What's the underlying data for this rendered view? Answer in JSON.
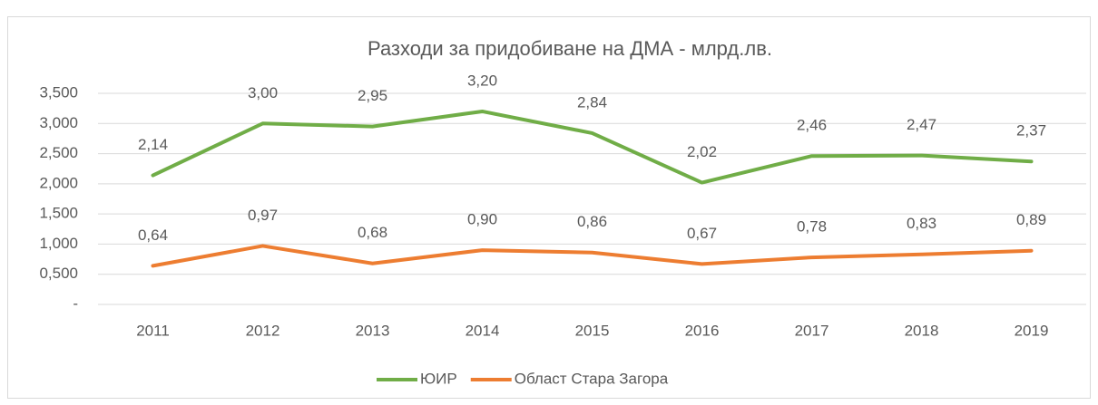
{
  "chart_data": {
    "type": "line",
    "title": "Разходи за придобиване на ДМА - млрд.лв.",
    "categories": [
      "2011",
      "2012",
      "2013",
      "2014",
      "2015",
      "2016",
      "2017",
      "2018",
      "2019"
    ],
    "series": [
      {
        "name": "ЮИР",
        "color": "#70ad47",
        "values": [
          2.14,
          3.0,
          2.95,
          3.2,
          2.84,
          2.02,
          2.46,
          2.47,
          2.37
        ],
        "value_labels": [
          "2,14",
          "3,00",
          "2,95",
          "3,20",
          "2,84",
          "2,02",
          "2,46",
          "2,47",
          "2,37"
        ]
      },
      {
        "name": "Област Стара Загора",
        "color": "#ed7d31",
        "values": [
          0.64,
          0.97,
          0.68,
          0.9,
          0.86,
          0.67,
          0.78,
          0.83,
          0.89
        ],
        "value_labels": [
          "0,64",
          "0,97",
          "0,68",
          "0,90",
          "0,86",
          "0,67",
          "0,78",
          "0,83",
          "0,89"
        ]
      }
    ],
    "ylim": [
      0,
      3.5
    ],
    "yticks": [
      {
        "value": 0,
        "label": "-"
      },
      {
        "value": 0.5,
        "label": "0,500"
      },
      {
        "value": 1,
        "label": "1,000"
      },
      {
        "value": 1.5,
        "label": "1,500"
      },
      {
        "value": 2,
        "label": "2,000"
      },
      {
        "value": 2.5,
        "label": "2,500"
      },
      {
        "value": 3,
        "label": "3,000"
      },
      {
        "value": 3.5,
        "label": "3,500"
      }
    ],
    "grid": true,
    "legend": "bottom"
  }
}
